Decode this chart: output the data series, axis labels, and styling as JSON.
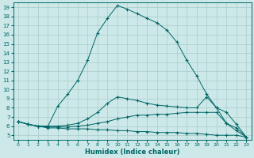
{
  "xlabel": "Humidex (Indice chaleur)",
  "bg_color": "#cce8e8",
  "line_color": "#006666",
  "grid_color": "#aacccc",
  "xlim": [
    -0.5,
    23.5
  ],
  "ylim": [
    4.5,
    19.5
  ],
  "xticks": [
    0,
    1,
    2,
    3,
    4,
    5,
    6,
    7,
    8,
    9,
    10,
    11,
    12,
    13,
    14,
    15,
    16,
    17,
    18,
    19,
    20,
    21,
    22,
    23
  ],
  "yticks": [
    5,
    6,
    7,
    8,
    9,
    10,
    11,
    12,
    13,
    14,
    15,
    16,
    17,
    18,
    19
  ],
  "lines": [
    {
      "x": [
        0,
        1,
        2,
        3,
        4,
        5,
        6,
        7,
        8,
        9,
        10,
        11,
        12,
        13,
        14,
        15,
        16,
        17,
        18,
        19,
        20,
        21,
        22,
        23
      ],
      "y": [
        6.5,
        6.2,
        6.0,
        5.8,
        5.8,
        5.7,
        5.7,
        5.7,
        5.6,
        5.6,
        5.5,
        5.5,
        5.4,
        5.4,
        5.3,
        5.3,
        5.3,
        5.2,
        5.2,
        5.1,
        5.0,
        5.0,
        5.0,
        4.8
      ]
    },
    {
      "x": [
        0,
        1,
        2,
        3,
        4,
        5,
        6,
        7,
        8,
        9,
        10,
        11,
        12,
        13,
        14,
        15,
        16,
        17,
        18,
        19,
        20,
        21,
        22,
        23
      ],
      "y": [
        6.5,
        6.2,
        6.0,
        5.9,
        5.9,
        5.9,
        6.0,
        6.1,
        6.3,
        6.5,
        6.8,
        7.0,
        7.2,
        7.2,
        7.3,
        7.3,
        7.4,
        7.5,
        7.5,
        7.5,
        7.5,
        6.3,
        5.5,
        4.8
      ]
    },
    {
      "x": [
        0,
        1,
        2,
        3,
        4,
        5,
        6,
        7,
        8,
        9,
        10,
        11,
        12,
        13,
        14,
        15,
        16,
        17,
        18,
        19,
        20,
        21,
        22,
        23
      ],
      "y": [
        6.5,
        6.2,
        6.0,
        6.0,
        6.0,
        6.1,
        6.3,
        6.8,
        7.5,
        8.5,
        9.2,
        9.0,
        8.8,
        8.5,
        8.3,
        8.2,
        8.1,
        8.0,
        8.0,
        9.2,
        8.0,
        7.5,
        6.2,
        4.8
      ]
    },
    {
      "x": [
        0,
        1,
        2,
        3,
        4,
        5,
        6,
        7,
        8,
        9,
        10,
        11,
        12,
        13,
        14,
        15,
        16,
        17,
        18,
        19,
        20,
        21,
        22,
        23
      ],
      "y": [
        6.5,
        6.2,
        6.0,
        6.0,
        8.2,
        9.5,
        11.0,
        13.2,
        16.2,
        17.8,
        19.2,
        18.8,
        18.3,
        17.8,
        17.3,
        16.5,
        15.2,
        13.2,
        11.5,
        9.5,
        8.0,
        6.3,
        5.8,
        4.8
      ]
    }
  ]
}
